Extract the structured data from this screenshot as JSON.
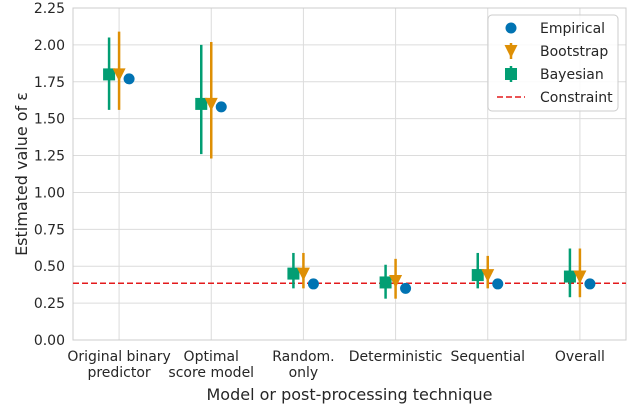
{
  "chart_data": {
    "type": "scatter",
    "xlabel": "Model or post-processing technique",
    "ylabel": "Estimated value of ε",
    "ylim": [
      0,
      2.25
    ],
    "yticks": [
      "0.00",
      "0.25",
      "0.50",
      "0.75",
      "1.00",
      "1.25",
      "1.50",
      "1.75",
      "2.00",
      "2.25"
    ],
    "categories": [
      [
        "Original binary",
        "predictor"
      ],
      [
        "Optimal",
        "score model"
      ],
      [
        "Random.",
        "only"
      ],
      [
        "Deterministic"
      ],
      [
        "Sequential"
      ],
      [
        "Overall"
      ]
    ],
    "grid": true,
    "legend_position": "top-right",
    "constraint": {
      "name": "Constraint",
      "value": 0.385,
      "color": "#e31a1c"
    },
    "series": [
      {
        "name": "Bayesian",
        "marker": "square",
        "color": "#029e73",
        "values": [
          1.8,
          1.6,
          0.45,
          0.39,
          0.44,
          0.43
        ],
        "low": [
          1.56,
          1.26,
          0.35,
          0.28,
          0.35,
          0.29
        ],
        "high": [
          2.05,
          2.0,
          0.59,
          0.51,
          0.59,
          0.62
        ]
      },
      {
        "name": "Bootstrap",
        "marker": "triangle-down",
        "color": "#de8f05",
        "values": [
          1.8,
          1.6,
          0.45,
          0.4,
          0.44,
          0.43
        ],
        "low": [
          1.56,
          1.23,
          0.35,
          0.28,
          0.35,
          0.29
        ],
        "high": [
          2.09,
          2.02,
          0.59,
          0.55,
          0.57,
          0.62
        ]
      },
      {
        "name": "Empirical",
        "marker": "circle",
        "color": "#0173b2",
        "values": [
          1.77,
          1.58,
          0.38,
          0.35,
          0.38,
          0.38
        ]
      }
    ],
    "legend_order": [
      "Empirical",
      "Bootstrap",
      "Bayesian",
      "Constraint"
    ]
  }
}
